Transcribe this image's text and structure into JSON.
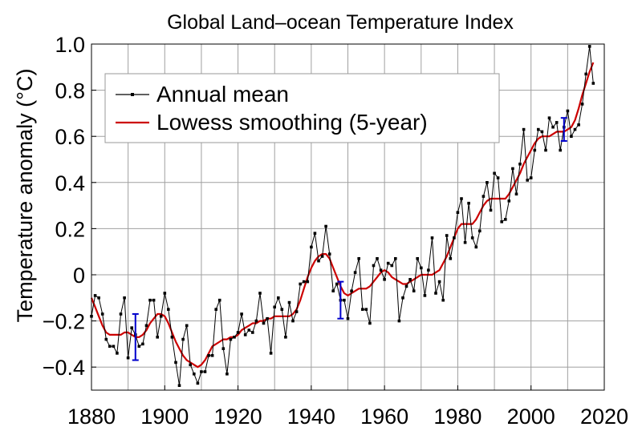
{
  "chart_data": {
    "type": "line",
    "title": "Global Land–ocean Temperature Index",
    "xlabel": "",
    "ylabel": "Temperature anomaly (°C)",
    "xlim": [
      1880,
      2020
    ],
    "ylim": [
      -0.5,
      1.0
    ],
    "grid": true,
    "legend_position": "top-left",
    "x_ticks": [
      1880,
      1900,
      1920,
      1940,
      1960,
      1980,
      2000,
      2020
    ],
    "x_tick_labels": [
      "1880",
      "1900",
      "1920",
      "1940",
      "1960",
      "1980",
      "2000",
      "2020"
    ],
    "y_ticks": [
      -0.4,
      -0.2,
      0,
      0.2,
      0.4,
      0.6,
      0.8,
      1.0
    ],
    "y_tick_labels": [
      "−0.4",
      "−0.2",
      "0",
      "0.2",
      "0.4",
      "0.6",
      "0.8",
      "1.0"
    ],
    "colors": {
      "annual": "#000000",
      "smoothing": "#cc0000",
      "error_bars": "#0000cc",
      "grid": "#a0a0a0"
    },
    "series": [
      {
        "name": "Annual mean",
        "marker": "square",
        "x": [
          1880,
          1881,
          1882,
          1883,
          1884,
          1885,
          1886,
          1887,
          1888,
          1889,
          1890,
          1891,
          1892,
          1893,
          1894,
          1895,
          1896,
          1897,
          1898,
          1899,
          1900,
          1901,
          1902,
          1903,
          1904,
          1905,
          1906,
          1907,
          1908,
          1909,
          1910,
          1911,
          1912,
          1913,
          1914,
          1915,
          1916,
          1917,
          1918,
          1919,
          1920,
          1921,
          1922,
          1923,
          1924,
          1925,
          1926,
          1927,
          1928,
          1929,
          1930,
          1931,
          1932,
          1933,
          1934,
          1935,
          1936,
          1937,
          1938,
          1939,
          1940,
          1941,
          1942,
          1943,
          1944,
          1945,
          1946,
          1947,
          1948,
          1949,
          1950,
          1951,
          1952,
          1953,
          1954,
          1955,
          1956,
          1957,
          1958,
          1959,
          1960,
          1961,
          1962,
          1963,
          1964,
          1965,
          1966,
          1967,
          1968,
          1969,
          1970,
          1971,
          1972,
          1973,
          1974,
          1975,
          1976,
          1977,
          1978,
          1979,
          1980,
          1981,
          1982,
          1983,
          1984,
          1985,
          1986,
          1987,
          1988,
          1989,
          1990,
          1991,
          1992,
          1993,
          1994,
          1995,
          1996,
          1997,
          1998,
          1999,
          2000,
          2001,
          2002,
          2003,
          2004,
          2005,
          2006,
          2007,
          2008,
          2009,
          2010,
          2011,
          2012,
          2013,
          2014,
          2015,
          2016,
          2017
        ],
        "values": [
          -0.18,
          -0.09,
          -0.1,
          -0.17,
          -0.28,
          -0.31,
          -0.31,
          -0.34,
          -0.17,
          -0.1,
          -0.36,
          -0.23,
          -0.26,
          -0.31,
          -0.3,
          -0.22,
          -0.11,
          -0.11,
          -0.27,
          -0.18,
          -0.08,
          -0.15,
          -0.27,
          -0.38,
          -0.48,
          -0.28,
          -0.22,
          -0.39,
          -0.43,
          -0.47,
          -0.42,
          -0.42,
          -0.35,
          -0.35,
          -0.15,
          -0.11,
          -0.32,
          -0.43,
          -0.28,
          -0.27,
          -0.25,
          -0.17,
          -0.26,
          -0.24,
          -0.25,
          -0.2,
          -0.08,
          -0.21,
          -0.19,
          -0.34,
          -0.14,
          -0.1,
          -0.15,
          -0.27,
          -0.12,
          -0.2,
          -0.16,
          -0.04,
          -0.03,
          -0.03,
          0.12,
          0.18,
          0.06,
          0.08,
          0.21,
          0.09,
          -0.07,
          -0.04,
          -0.11,
          -0.11,
          -0.19,
          -0.07,
          0.01,
          0.07,
          -0.15,
          -0.15,
          -0.21,
          0.04,
          0.07,
          0.02,
          -0.02,
          0.05,
          0.04,
          0.07,
          -0.2,
          -0.1,
          -0.05,
          -0.02,
          -0.07,
          0.07,
          0.03,
          -0.09,
          0.02,
          0.16,
          -0.08,
          -0.03,
          -0.11,
          0.17,
          0.07,
          0.16,
          0.27,
          0.33,
          0.14,
          0.31,
          0.16,
          0.12,
          0.19,
          0.34,
          0.4,
          0.28,
          0.44,
          0.42,
          0.23,
          0.24,
          0.32,
          0.46,
          0.35,
          0.48,
          0.63,
          0.41,
          0.42,
          0.54,
          0.63,
          0.62,
          0.54,
          0.68,
          0.64,
          0.66,
          0.54,
          0.64,
          0.71,
          0.6,
          0.63,
          0.65,
          0.74,
          0.87,
          0.99,
          0.83
        ]
      },
      {
        "name": "Lowess smoothing (5-year)",
        "x": [
          1880,
          1881,
          1882,
          1883,
          1884,
          1885,
          1886,
          1887,
          1888,
          1889,
          1890,
          1891,
          1892,
          1893,
          1894,
          1895,
          1896,
          1897,
          1898,
          1899,
          1900,
          1901,
          1902,
          1903,
          1904,
          1905,
          1906,
          1907,
          1908,
          1909,
          1910,
          1911,
          1912,
          1913,
          1914,
          1915,
          1916,
          1917,
          1918,
          1919,
          1920,
          1921,
          1922,
          1923,
          1924,
          1925,
          1926,
          1927,
          1928,
          1929,
          1930,
          1931,
          1932,
          1933,
          1934,
          1935,
          1936,
          1937,
          1938,
          1939,
          1940,
          1941,
          1942,
          1943,
          1944,
          1945,
          1946,
          1947,
          1948,
          1949,
          1950,
          1951,
          1952,
          1953,
          1954,
          1955,
          1956,
          1957,
          1958,
          1959,
          1960,
          1961,
          1962,
          1963,
          1964,
          1965,
          1966,
          1967,
          1968,
          1969,
          1970,
          1971,
          1972,
          1973,
          1974,
          1975,
          1976,
          1977,
          1978,
          1979,
          1980,
          1981,
          1982,
          1983,
          1984,
          1985,
          1986,
          1987,
          1988,
          1989,
          1990,
          1991,
          1992,
          1993,
          1994,
          1995,
          1996,
          1997,
          1998,
          1999,
          2000,
          2001,
          2002,
          2003,
          2004,
          2005,
          2006,
          2007,
          2008,
          2009,
          2010,
          2011,
          2012,
          2013,
          2014,
          2015,
          2016,
          2017
        ],
        "values": [
          -0.1,
          -0.14,
          -0.18,
          -0.22,
          -0.25,
          -0.26,
          -0.26,
          -0.26,
          -0.26,
          -0.25,
          -0.25,
          -0.26,
          -0.27,
          -0.27,
          -0.26,
          -0.24,
          -0.21,
          -0.19,
          -0.17,
          -0.17,
          -0.18,
          -0.21,
          -0.25,
          -0.29,
          -0.32,
          -0.35,
          -0.37,
          -0.38,
          -0.39,
          -0.4,
          -0.39,
          -0.37,
          -0.34,
          -0.31,
          -0.3,
          -0.29,
          -0.28,
          -0.28,
          -0.27,
          -0.27,
          -0.26,
          -0.24,
          -0.23,
          -0.22,
          -0.21,
          -0.21,
          -0.2,
          -0.2,
          -0.19,
          -0.19,
          -0.18,
          -0.18,
          -0.18,
          -0.18,
          -0.18,
          -0.17,
          -0.15,
          -0.11,
          -0.06,
          -0.01,
          0.03,
          0.06,
          0.08,
          0.09,
          0.09,
          0.07,
          0.03,
          -0.01,
          -0.05,
          -0.08,
          -0.09,
          -0.08,
          -0.07,
          -0.06,
          -0.06,
          -0.06,
          -0.05,
          -0.03,
          -0.01,
          0.01,
          0.02,
          0.01,
          -0.01,
          -0.02,
          -0.03,
          -0.04,
          -0.04,
          -0.03,
          -0.02,
          -0.01,
          0.0,
          0.0,
          0.0,
          0.0,
          0.01,
          0.02,
          0.05,
          0.08,
          0.12,
          0.16,
          0.2,
          0.22,
          0.22,
          0.22,
          0.22,
          0.24,
          0.27,
          0.3,
          0.32,
          0.33,
          0.33,
          0.33,
          0.33,
          0.33,
          0.35,
          0.38,
          0.41,
          0.44,
          0.48,
          0.51,
          0.54,
          0.57,
          0.59,
          0.6,
          0.6,
          0.6,
          0.61,
          0.62,
          0.62,
          0.62,
          0.63,
          0.64,
          0.67,
          0.72,
          0.78,
          0.83,
          0.88,
          0.92
        ]
      }
    ],
    "error_bars": [
      {
        "x": 1892,
        "low": -0.37,
        "high": -0.17
      },
      {
        "x": 1948,
        "low": -0.19,
        "high": -0.03
      },
      {
        "x": 2009,
        "low": 0.58,
        "high": 0.68
      }
    ]
  }
}
